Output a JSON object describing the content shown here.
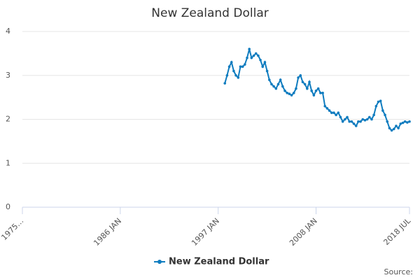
{
  "chart_data": {
    "type": "line",
    "title": "New Zealand Dollar",
    "source": "Source:",
    "x": [
      "1997-10",
      "1998-01",
      "1998-04",
      "1998-07",
      "1998-10",
      "1999-01",
      "1999-04",
      "1999-07",
      "1999-10",
      "2000-01",
      "2000-04",
      "2000-07",
      "2000-10",
      "2001-01",
      "2001-04",
      "2001-07",
      "2001-10",
      "2002-01",
      "2002-04",
      "2002-07",
      "2002-10",
      "2003-01",
      "2003-04",
      "2003-07",
      "2003-10",
      "2004-01",
      "2004-04",
      "2004-07",
      "2004-10",
      "2005-01",
      "2005-04",
      "2005-07",
      "2005-10",
      "2006-01",
      "2006-04",
      "2006-07",
      "2006-10",
      "2007-01",
      "2007-04",
      "2007-07",
      "2007-10",
      "2008-01",
      "2008-04",
      "2008-07",
      "2008-10",
      "2009-01",
      "2009-04",
      "2009-07",
      "2009-10",
      "2010-01",
      "2010-04",
      "2010-07",
      "2010-10",
      "2011-01",
      "2011-04",
      "2011-07",
      "2011-10",
      "2012-01",
      "2012-04",
      "2012-07",
      "2012-10",
      "2013-01",
      "2013-04",
      "2013-07",
      "2013-10",
      "2014-01",
      "2014-04",
      "2014-07",
      "2014-10",
      "2015-01",
      "2015-04",
      "2015-07",
      "2015-10",
      "2016-01",
      "2016-04",
      "2016-07",
      "2016-10",
      "2017-01",
      "2017-04",
      "2017-07",
      "2017-10",
      "2018-01",
      "2018-04",
      "2018-07"
    ],
    "series": [
      {
        "name": "New Zealand Dollar",
        "color": "#0f7cbf",
        "values": [
          2.82,
          3.0,
          3.2,
          3.3,
          3.1,
          3.0,
          2.95,
          3.2,
          3.2,
          3.25,
          3.4,
          3.6,
          3.4,
          3.45,
          3.5,
          3.45,
          3.35,
          3.2,
          3.3,
          3.1,
          2.9,
          2.8,
          2.75,
          2.7,
          2.8,
          2.9,
          2.75,
          2.65,
          2.6,
          2.58,
          2.55,
          2.6,
          2.7,
          2.95,
          3.0,
          2.85,
          2.8,
          2.7,
          2.85,
          2.65,
          2.55,
          2.65,
          2.7,
          2.6,
          2.6,
          2.3,
          2.25,
          2.2,
          2.15,
          2.15,
          2.1,
          2.15,
          2.05,
          1.95,
          2.0,
          2.05,
          1.95,
          1.95,
          1.9,
          1.85,
          1.95,
          1.95,
          2.0,
          1.98,
          2.0,
          2.05,
          2.0,
          2.1,
          2.3,
          2.4,
          2.42,
          2.2,
          2.1,
          1.95,
          1.8,
          1.75,
          1.78,
          1.85,
          1.8,
          1.9,
          1.92,
          1.95,
          1.93,
          1.95
        ]
      }
    ],
    "xlim": [
      "1975-01",
      "2018-07"
    ],
    "xticks": [
      {
        "value": "1975-01",
        "label": "1975…"
      },
      {
        "value": "1986-01",
        "label": "1986 JAN"
      },
      {
        "value": "1997-01",
        "label": "1997 JAN"
      },
      {
        "value": "2008-01",
        "label": "2008 JAN"
      },
      {
        "value": "2018-07",
        "label": "2018 JUL"
      }
    ],
    "ylim": [
      0,
      4
    ],
    "yticks": [
      0,
      1,
      2,
      3,
      4
    ],
    "grid": true,
    "legend": "bottom"
  }
}
